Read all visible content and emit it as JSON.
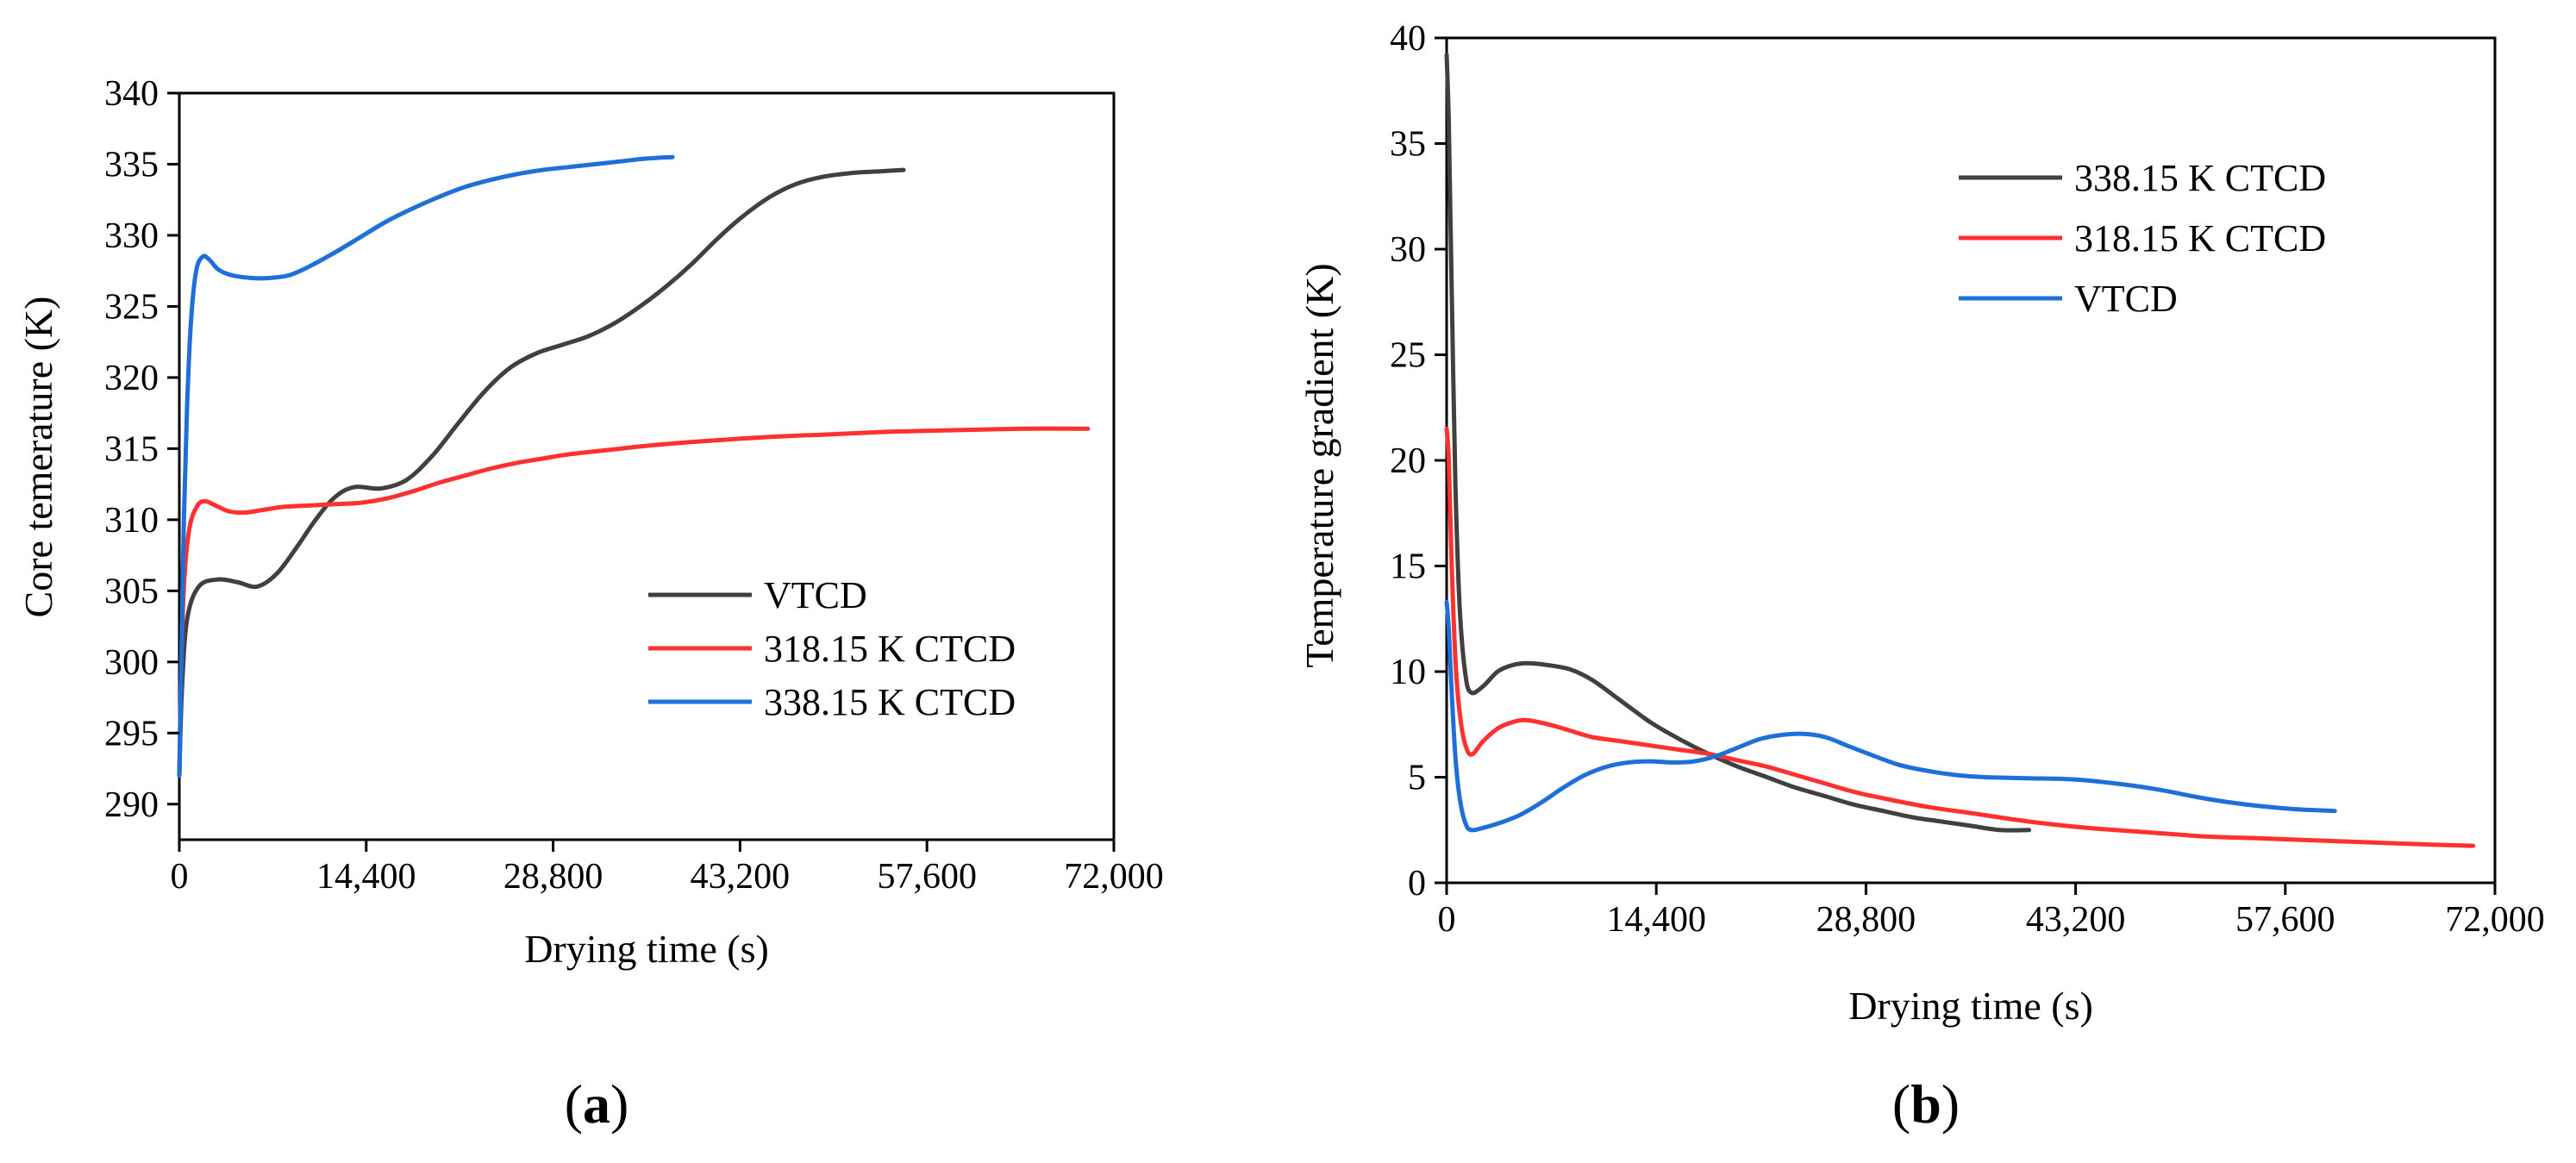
{
  "chart_data": [
    {
      "panel": "a",
      "panel_label": "(a)",
      "type": "line",
      "xlabel": "Drying time (s)",
      "ylabel": "Core temerature (K)",
      "xlim": [
        0,
        72000
      ],
      "ylim": [
        287.5,
        340
      ],
      "xticks": [
        0,
        14400,
        28800,
        43200,
        57600,
        72000
      ],
      "xtick_labels": [
        "0",
        "14,400",
        "28,800",
        "43,200",
        "57,600",
        "72,000"
      ],
      "yticks": [
        290,
        295,
        300,
        305,
        310,
        315,
        320,
        325,
        330,
        335,
        340
      ],
      "ytick_labels": [
        "290",
        "295",
        "300",
        "305",
        "310",
        "315",
        "320",
        "325",
        "330",
        "335",
        "340"
      ],
      "legend_position": "lower-right",
      "legend_order": [
        "VTCD",
        "318.15 K CTCD",
        "338.15 K CTCD"
      ],
      "series": [
        {
          "name": "VTCD",
          "color": "#404040",
          "points": [
            [
              0,
              292
            ],
            [
              200,
              298
            ],
            [
              600,
              303
            ],
            [
              1500,
              305.3
            ],
            [
              3000,
              305.8
            ],
            [
              4500,
              305.6
            ],
            [
              6000,
              305.3
            ],
            [
              7500,
              306.2
            ],
            [
              9000,
              308
            ],
            [
              10500,
              310
            ],
            [
              12000,
              311.6
            ],
            [
              13500,
              312.3
            ],
            [
              15500,
              312.2
            ],
            [
              17500,
              312.8
            ],
            [
              19500,
              314.5
            ],
            [
              21500,
              316.8
            ],
            [
              23500,
              319
            ],
            [
              25500,
              320.7
            ],
            [
              27500,
              321.7
            ],
            [
              29500,
              322.3
            ],
            [
              31500,
              322.9
            ],
            [
              33500,
              323.8
            ],
            [
              35500,
              325
            ],
            [
              37500,
              326.4
            ],
            [
              39500,
              328
            ],
            [
              41500,
              329.8
            ],
            [
              43500,
              331.4
            ],
            [
              45500,
              332.7
            ],
            [
              47500,
              333.6
            ],
            [
              49500,
              334.1
            ],
            [
              52000,
              334.4
            ],
            [
              54000,
              334.5
            ],
            [
              55800,
              334.6
            ]
          ]
        },
        {
          "name": "318.15 K CTCD",
          "color": "#ff3030",
          "points": [
            [
              0,
              292
            ],
            [
              150,
              300
            ],
            [
              400,
              306
            ],
            [
              800,
              309.5
            ],
            [
              1400,
              311
            ],
            [
              2000,
              311.3
            ],
            [
              2800,
              311
            ],
            [
              3800,
              310.6
            ],
            [
              5000,
              310.5
            ],
            [
              6500,
              310.7
            ],
            [
              8000,
              310.9
            ],
            [
              10000,
              311
            ],
            [
              12000,
              311.1
            ],
            [
              14000,
              311.2
            ],
            [
              16000,
              311.5
            ],
            [
              18000,
              312
            ],
            [
              20000,
              312.6
            ],
            [
              22000,
              313.1
            ],
            [
              24000,
              313.6
            ],
            [
              26000,
              314
            ],
            [
              28000,
              314.3
            ],
            [
              30000,
              314.6
            ],
            [
              33000,
              314.9
            ],
            [
              36000,
              315.2
            ],
            [
              40000,
              315.5
            ],
            [
              45000,
              315.8
            ],
            [
              50000,
              316
            ],
            [
              55000,
              316.2
            ],
            [
              60000,
              316.3
            ],
            [
              65000,
              316.4
            ],
            [
              70000,
              316.4
            ]
          ]
        },
        {
          "name": "338.15 K CTCD",
          "color": "#1e6fd9",
          "points": [
            [
              0,
              292
            ],
            [
              150,
              300
            ],
            [
              350,
              310
            ],
            [
              600,
              318
            ],
            [
              900,
              324
            ],
            [
              1300,
              327.5
            ],
            [
              1800,
              328.5
            ],
            [
              2300,
              328.3
            ],
            [
              3000,
              327.6
            ],
            [
              4000,
              327.2
            ],
            [
              5500,
              327.0
            ],
            [
              7000,
              327.0
            ],
            [
              8500,
              327.2
            ],
            [
              10000,
              327.8
            ],
            [
              12000,
              328.8
            ],
            [
              14000,
              329.9
            ],
            [
              16000,
              331
            ],
            [
              18000,
              331.9
            ],
            [
              20000,
              332.7
            ],
            [
              22000,
              333.4
            ],
            [
              24000,
              333.9
            ],
            [
              26000,
              334.3
            ],
            [
              28000,
              334.6
            ],
            [
              30000,
              334.8
            ],
            [
              32000,
              335
            ],
            [
              34000,
              335.2
            ],
            [
              36000,
              335.4
            ],
            [
              38000,
              335.5
            ]
          ]
        }
      ]
    },
    {
      "panel": "b",
      "panel_label": "(b)",
      "type": "line",
      "xlabel": "Drying time (s)",
      "ylabel": "Temperature gradient (K)",
      "xlim": [
        0,
        72000
      ],
      "ylim": [
        0,
        40
      ],
      "xticks": [
        0,
        14400,
        28800,
        43200,
        57600,
        72000
      ],
      "xtick_labels": [
        "0",
        "14,400",
        "28,800",
        "43,200",
        "57,600",
        "72,000"
      ],
      "yticks": [
        0,
        5,
        10,
        15,
        20,
        25,
        30,
        35,
        40
      ],
      "ytick_labels": [
        "0",
        "5",
        "10",
        "15",
        "20",
        "25",
        "30",
        "35",
        "40"
      ],
      "legend_position": "upper-right",
      "legend_order": [
        "338.15 K CTCD",
        "318.15 K CTCD",
        "VTCD"
      ],
      "series": [
        {
          "name": "338.15 K CTCD",
          "color": "#404040",
          "points": [
            [
              0,
              39.2
            ],
            [
              150,
              36
            ],
            [
              350,
              28
            ],
            [
              600,
              19
            ],
            [
              900,
              13
            ],
            [
              1300,
              9.8
            ],
            [
              1700,
              9
            ],
            [
              2500,
              9.3
            ],
            [
              3500,
              10
            ],
            [
              4500,
              10.3
            ],
            [
              5500,
              10.4
            ],
            [
              7000,
              10.3
            ],
            [
              8500,
              10.1
            ],
            [
              10000,
              9.6
            ],
            [
              12000,
              8.6
            ],
            [
              14000,
              7.6
            ],
            [
              16000,
              6.8
            ],
            [
              18000,
              6.1
            ],
            [
              20000,
              5.5
            ],
            [
              22000,
              5.0
            ],
            [
              24000,
              4.5
            ],
            [
              26000,
              4.1
            ],
            [
              28000,
              3.7
            ],
            [
              30000,
              3.4
            ],
            [
              32000,
              3.1
            ],
            [
              34000,
              2.9
            ],
            [
              36000,
              2.7
            ],
            [
              38000,
              2.5
            ],
            [
              40000,
              2.5
            ]
          ]
        },
        {
          "name": "318.15 K CTCD",
          "color": "#ff3030",
          "points": [
            [
              0,
              21.5
            ],
            [
              150,
              20
            ],
            [
              350,
              15
            ],
            [
              650,
              10
            ],
            [
              1000,
              7.5
            ],
            [
              1400,
              6.3
            ],
            [
              1800,
              6.1
            ],
            [
              2500,
              6.7
            ],
            [
              3500,
              7.3
            ],
            [
              4500,
              7.6
            ],
            [
              5500,
              7.7
            ],
            [
              7000,
              7.5
            ],
            [
              8500,
              7.2
            ],
            [
              10000,
              6.9
            ],
            [
              12000,
              6.7
            ],
            [
              14000,
              6.5
            ],
            [
              16000,
              6.3
            ],
            [
              18000,
              6.1
            ],
            [
              20000,
              5.8
            ],
            [
              22000,
              5.5
            ],
            [
              24000,
              5.1
            ],
            [
              26000,
              4.7
            ],
            [
              28000,
              4.3
            ],
            [
              30000,
              4.0
            ],
            [
              33000,
              3.6
            ],
            [
              36000,
              3.3
            ],
            [
              40000,
              2.9
            ],
            [
              44000,
              2.6
            ],
            [
              48000,
              2.4
            ],
            [
              52000,
              2.2
            ],
            [
              56000,
              2.1
            ],
            [
              60000,
              2.0
            ],
            [
              64000,
              1.9
            ],
            [
              68000,
              1.8
            ],
            [
              70500,
              1.75
            ]
          ]
        },
        {
          "name": "VTCD",
          "color": "#1e6fd9",
          "points": [
            [
              0,
              13.3
            ],
            [
              150,
              12
            ],
            [
              350,
              9
            ],
            [
              600,
              6
            ],
            [
              900,
              4
            ],
            [
              1300,
              2.8
            ],
            [
              1700,
              2.5
            ],
            [
              2500,
              2.6
            ],
            [
              3500,
              2.8
            ],
            [
              5000,
              3.2
            ],
            [
              6500,
              3.8
            ],
            [
              8000,
              4.5
            ],
            [
              9500,
              5.1
            ],
            [
              11000,
              5.5
            ],
            [
              12500,
              5.7
            ],
            [
              14000,
              5.75
            ],
            [
              15500,
              5.7
            ],
            [
              17000,
              5.75
            ],
            [
              18500,
              6.0
            ],
            [
              20000,
              6.4
            ],
            [
              21500,
              6.8
            ],
            [
              23000,
              7.0
            ],
            [
              24500,
              7.05
            ],
            [
              26000,
              6.9
            ],
            [
              27500,
              6.5
            ],
            [
              29000,
              6.1
            ],
            [
              31000,
              5.6
            ],
            [
              33000,
              5.3
            ],
            [
              35000,
              5.1
            ],
            [
              37000,
              5.0
            ],
            [
              40000,
              4.95
            ],
            [
              43000,
              4.9
            ],
            [
              46000,
              4.7
            ],
            [
              49000,
              4.4
            ],
            [
              52000,
              4.0
            ],
            [
              55000,
              3.7
            ],
            [
              58000,
              3.5
            ],
            [
              61000,
              3.4
            ]
          ]
        }
      ]
    }
  ]
}
